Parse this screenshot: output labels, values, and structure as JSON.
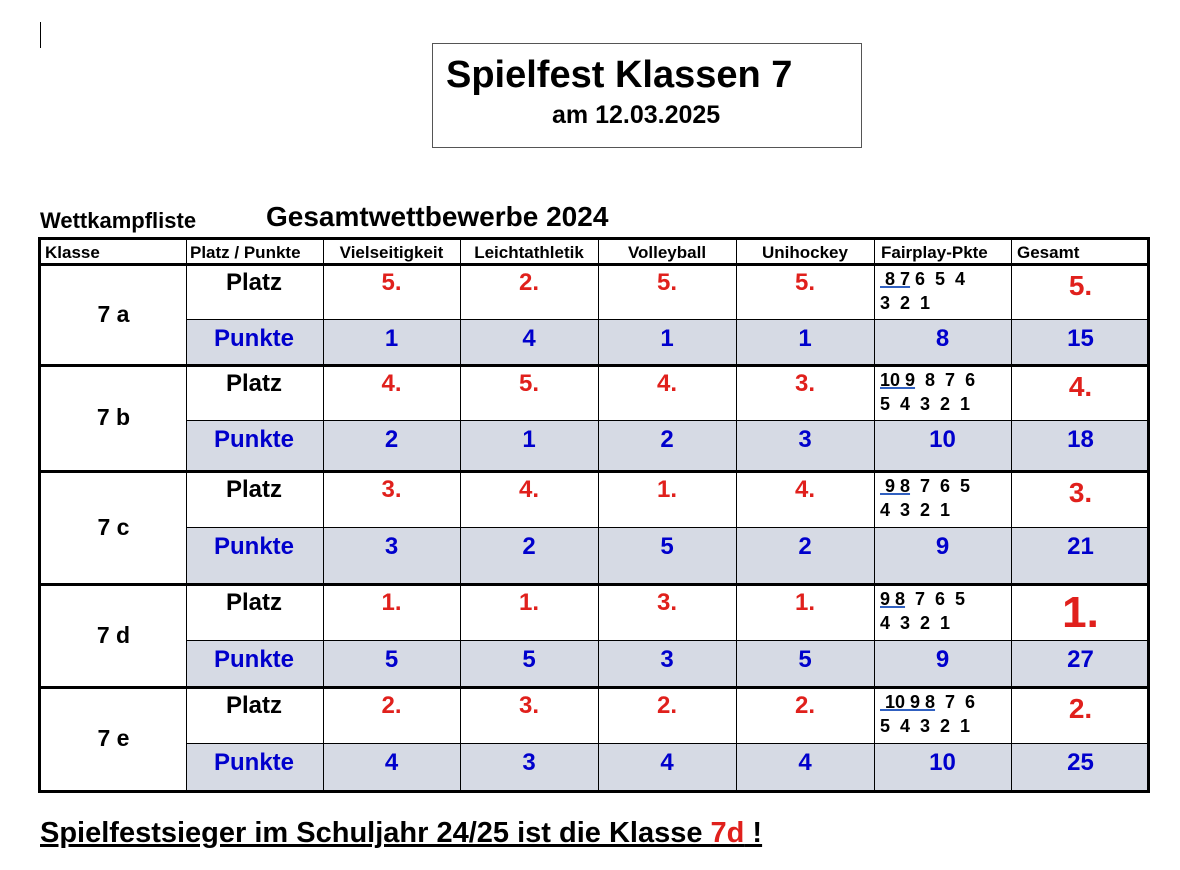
{
  "document": {
    "title": "Spielfest Klassen 7",
    "date": "am 12.03.2025",
    "list_label": "Wettkampfliste",
    "list_heading": "Gesamtwettbewerbe 2024"
  },
  "table": {
    "headers": [
      "Klasse",
      "Platz / Punkte",
      "Vielseitigkeit",
      "Leichtathletik",
      "Volleyball",
      "Unihockey",
      "Fairplay-Pkte",
      "Gesamt"
    ],
    "platz_label": "Platz",
    "punkte_label": "Punkte",
    "rows": [
      {
        "klasse": "7 a",
        "platz": [
          "5.",
          "2.",
          "5.",
          "5."
        ],
        "punkte": [
          "1",
          "4",
          "1",
          "1"
        ],
        "fairplay_line1_marked": " 8 7",
        "fairplay_line1_rest": " 6  5  4",
        "fairplay_line2": "3  2  1",
        "fairplay_punkte": "8",
        "gesamt_platz": "5.",
        "gesamt_punkte": "15"
      },
      {
        "klasse": "7 b",
        "platz": [
          "4.",
          "5.",
          "4.",
          "3."
        ],
        "punkte": [
          "2",
          "1",
          "2",
          "3"
        ],
        "fairplay_line1_marked": "10 9",
        "fairplay_line1_rest": "  8  7  6",
        "fairplay_line2": "5  4  3  2  1",
        "fairplay_punkte": "10",
        "gesamt_platz": "4.",
        "gesamt_punkte": "18"
      },
      {
        "klasse": "7 c",
        "platz": [
          "3.",
          "4.",
          "1.",
          "4."
        ],
        "punkte": [
          "3",
          "2",
          "5",
          "2"
        ],
        "fairplay_line1_marked": " 9 8",
        "fairplay_line1_rest": "  7  6  5",
        "fairplay_line2": "4  3  2  1",
        "fairplay_punkte": "9",
        "gesamt_platz": "3.",
        "gesamt_punkte": "21"
      },
      {
        "klasse": "7 d",
        "platz": [
          "1.",
          "1.",
          "3.",
          "1."
        ],
        "punkte": [
          "5",
          "5",
          "3",
          "5"
        ],
        "fairplay_line1_marked": "9 8",
        "fairplay_line1_rest": "  7  6  5",
        "fairplay_line2": "4  3  2  1",
        "fairplay_punkte": "9",
        "gesamt_platz": "1.",
        "gesamt_punkte": "27"
      },
      {
        "klasse": "7 e",
        "platz": [
          "2.",
          "3.",
          "2.",
          "2."
        ],
        "punkte": [
          "4",
          "3",
          "4",
          "4"
        ],
        "fairplay_line1_marked": " 10 9 8",
        "fairplay_line1_rest": "  7  6",
        "fairplay_line2": "5  4  3  2  1",
        "fairplay_punkte": "10",
        "gesamt_platz": "2.",
        "gesamt_punkte": "25"
      }
    ]
  },
  "footer": {
    "text_before": "Spielfestsieger im Schuljahr 24/25 ist die Klasse ",
    "winner": "7d",
    "text_after": " !"
  },
  "colors": {
    "red": "#e0201c",
    "blue": "#0000cc",
    "shade": "#d6dae4"
  }
}
